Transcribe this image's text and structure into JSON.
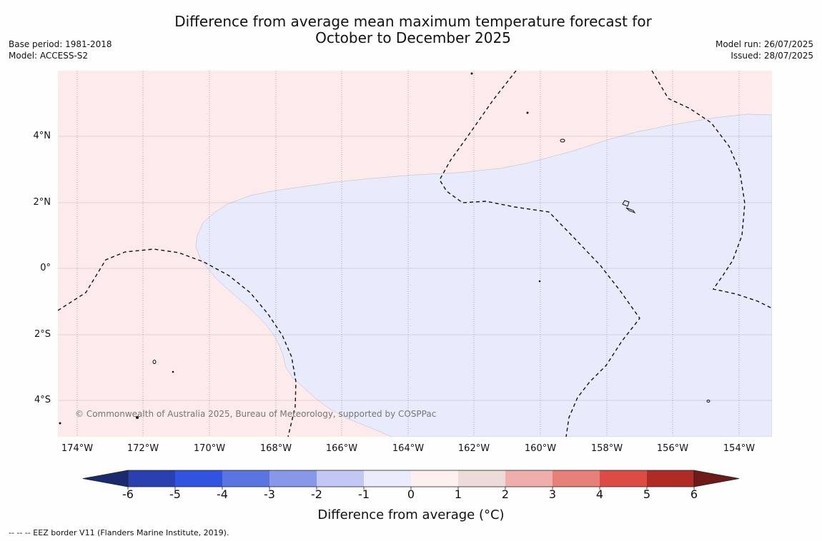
{
  "title_line1": "Difference from average mean maximum temperature forecast for",
  "title_line2": "October to December 2025",
  "base_period": "Base period: 1981-2018",
  "model": "Model: ACCESS-S2",
  "model_run": "Model run: 26/07/2025",
  "issued": "Issued: 28/07/2025",
  "copyright": "© Commonwealth of Australia 2025, Bureau of Meteorology, supported by COSPPac",
  "lat_labels": [
    "4°N",
    "2°N",
    "0°",
    "2°S",
    "4°S"
  ],
  "lon_labels": [
    "174°W",
    "172°W",
    "170°W",
    "168°W",
    "166°W",
    "164°W",
    "162°W",
    "160°W",
    "158°W",
    "156°W",
    "154°W"
  ],
  "colorbar": {
    "ticks": [
      "-6",
      "-5",
      "-4",
      "-3",
      "-2",
      "-1",
      "0",
      "1",
      "2",
      "3",
      "4",
      "5",
      "6"
    ],
    "colors": [
      "#1a2a6e",
      "#2b40b0",
      "#3054e0",
      "#5a74e0",
      "#8898e8",
      "#c2c8f4",
      "#eaecfb",
      "#fdf0ee",
      "#eedad8",
      "#f0aeaa",
      "#e8807a",
      "#dc4c44",
      "#b02a26",
      "#6e1a18"
    ],
    "title": "Difference from average (°C)"
  },
  "map": {
    "warm_color": "#fcebea",
    "cool_color": "#e8ebfb"
  },
  "footer": "-- -- -- EEZ border V11 (Flanders Marine Institute, 2019)."
}
